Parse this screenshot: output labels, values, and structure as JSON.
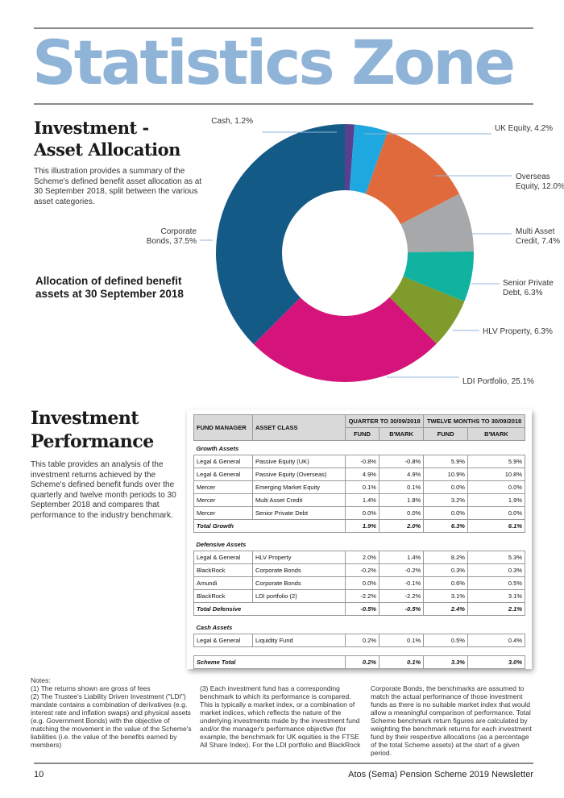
{
  "page_title": "Statistics Zone",
  "allocation": {
    "heading_line1": "Investment -",
    "heading_line2": "Asset Allocation",
    "description": "This illustration provides a summary of the Scheme's defined benefit asset allocation as at 30 September 2018, split between the various asset categories.",
    "subheading": "Allocation of defined benefit assets at 30 September 2018"
  },
  "chart_data": {
    "type": "pie",
    "donut": true,
    "slices": [
      {
        "label": "Cash, 1.2%",
        "value": 1.2,
        "color": "#5a3f8f"
      },
      {
        "label": "UK Equity, 4.2%",
        "value": 4.2,
        "color": "#1fa8e0"
      },
      {
        "label": "Overseas Equity, 12.0%",
        "value": 12.0,
        "color": "#e06a3c"
      },
      {
        "label": "Multi Asset Credit, 7.4%",
        "value": 7.4,
        "color": "#a7a8a9"
      },
      {
        "label": "Senior Private Debt, 6.3%",
        "value": 6.3,
        "color": "#10b3a0"
      },
      {
        "label": "HLV Property, 6.3%",
        "value": 6.3,
        "color": "#7f9b2c"
      },
      {
        "label": "LDI Portfolio, 25.1%",
        "value": 25.1,
        "color": "#d4147a"
      },
      {
        "label": "Corporate Bonds, 37.5%",
        "value": 37.5,
        "color": "#145a86"
      }
    ],
    "label_lines": [
      [
        "Cash, 1.2%"
      ],
      [
        "UK Equity, 4.2%"
      ],
      [
        "Overseas",
        "Equity, 12.0%"
      ],
      [
        "Multi Asset",
        "Credit, 7.4%"
      ],
      [
        "Senior Private",
        "Debt, 6.3%"
      ],
      [
        "HLV Property, 6.3%"
      ],
      [
        "LDI Portfolio, 25.1%"
      ],
      [
        "Corporate",
        "Bonds, 37.5%"
      ]
    ]
  },
  "performance": {
    "heading_line1": "Investment",
    "heading_line2": "Performance",
    "description": "This table provides an analysis of the investment returns achieved by the Scheme's defined benefit funds over the quarterly and twelve month periods to 30 September 2018 and compares that performance to the industry benchmark.",
    "table": {
      "headers": {
        "manager": "FUND MANAGER",
        "asset": "ASSET CLASS",
        "quarter": "QUARTER TO 30/09/2018",
        "twelve": "TWELVE MONTHS TO 30/09/2018",
        "fund": "FUND",
        "bmark": "B'MARK"
      },
      "groups": [
        {
          "name": "Growth Assets",
          "rows": [
            [
              "Legal & General",
              "Passive Equity (UK)",
              "-0.8%",
              "-0.8%",
              "5.9%",
              "5.9%"
            ],
            [
              "Legal & General",
              "Passive Equity (Overseas)",
              "4.9%",
              "4.9%",
              "10.9%",
              "10.8%"
            ],
            [
              "Mercer",
              "Emerging Market Equity",
              "0.1%",
              "0.1%",
              "0.0%",
              "0.0%"
            ],
            [
              "Mercer",
              "Multi Asset Credit",
              "1.4%",
              "1.8%",
              "3.2%",
              "1.9%"
            ],
            [
              "Mercer",
              "Senior Private Debt",
              "0.0%",
              "0.0%",
              "0.0%",
              "0.0%"
            ]
          ],
          "total": [
            "Total Growth",
            "1.9%",
            "2.0%",
            "6.3%",
            "6.1%"
          ]
        },
        {
          "name": "Defensive Assets",
          "rows": [
            [
              "Legal & General",
              "HLV Property",
              "2.0%",
              "1.4%",
              "8.2%",
              "5.3%"
            ],
            [
              "BlackRock",
              "Corporate Bonds",
              "-0.2%",
              "-0.2%",
              "0.3%",
              "0.3%"
            ],
            [
              "Amundi",
              "Corporate Bonds",
              "0.0%",
              "-0.1%",
              "0.6%",
              "0.5%"
            ],
            [
              "BlackRock",
              "LDI portfolio (2)",
              "-2.2%",
              "-2.2%",
              "3.1%",
              "3.1%"
            ]
          ],
          "total": [
            "Total Defensive",
            "-0.5%",
            "-0.5%",
            "2.4%",
            "2.1%"
          ]
        },
        {
          "name": "Cash Assets",
          "rows": [
            [
              "Legal & General",
              "Liquidity Fund",
              "0.2%",
              "0.1%",
              "0.5%",
              "0.4%"
            ]
          ],
          "total": null
        }
      ],
      "scheme_total": [
        "Scheme Total",
        "0.2%",
        "0.1%",
        "3.3%",
        "3.0%"
      ]
    }
  },
  "notes": {
    "title": "Notes:",
    "n1": "(1) The returns shown are gross of fees",
    "n2": "(2) The Trustee's Liability Driven Investment (\"LDI\") mandate contains a combination of derivatives (e.g. interest rate and inflation swaps) and physical assets (e.g. Government Bonds) with the objective of matching the movement in the value of the Scheme's liabilities (i.e. the value of the benefits earned by members)",
    "n3": "(3) Each investment fund has a corresponding benchmark to which its performance is compared. This is typically a market index, or a combination of market indices, which reflects the nature of the underlying investments made by the investment fund and/or the manager's performance objective (for example, the benchmark for UK equities is the FTSE All Share Index). For the LDI portfolio and BlackRock",
    "n4": "Corporate Bonds, the benchmarks are assumed to match the actual performance of those investment funds as there is no suitable market index that would allow a meaningful comparison of performance. Total Scheme benchmark return figures are calculated by weighting the benchmark returns for each investment fund by their respective allocations (as a percentage of the total Scheme assets) at the start of a given period."
  },
  "footer": {
    "page_number": "10",
    "publication": "Atos (Sema) Pension Scheme 2019 Newsletter"
  }
}
